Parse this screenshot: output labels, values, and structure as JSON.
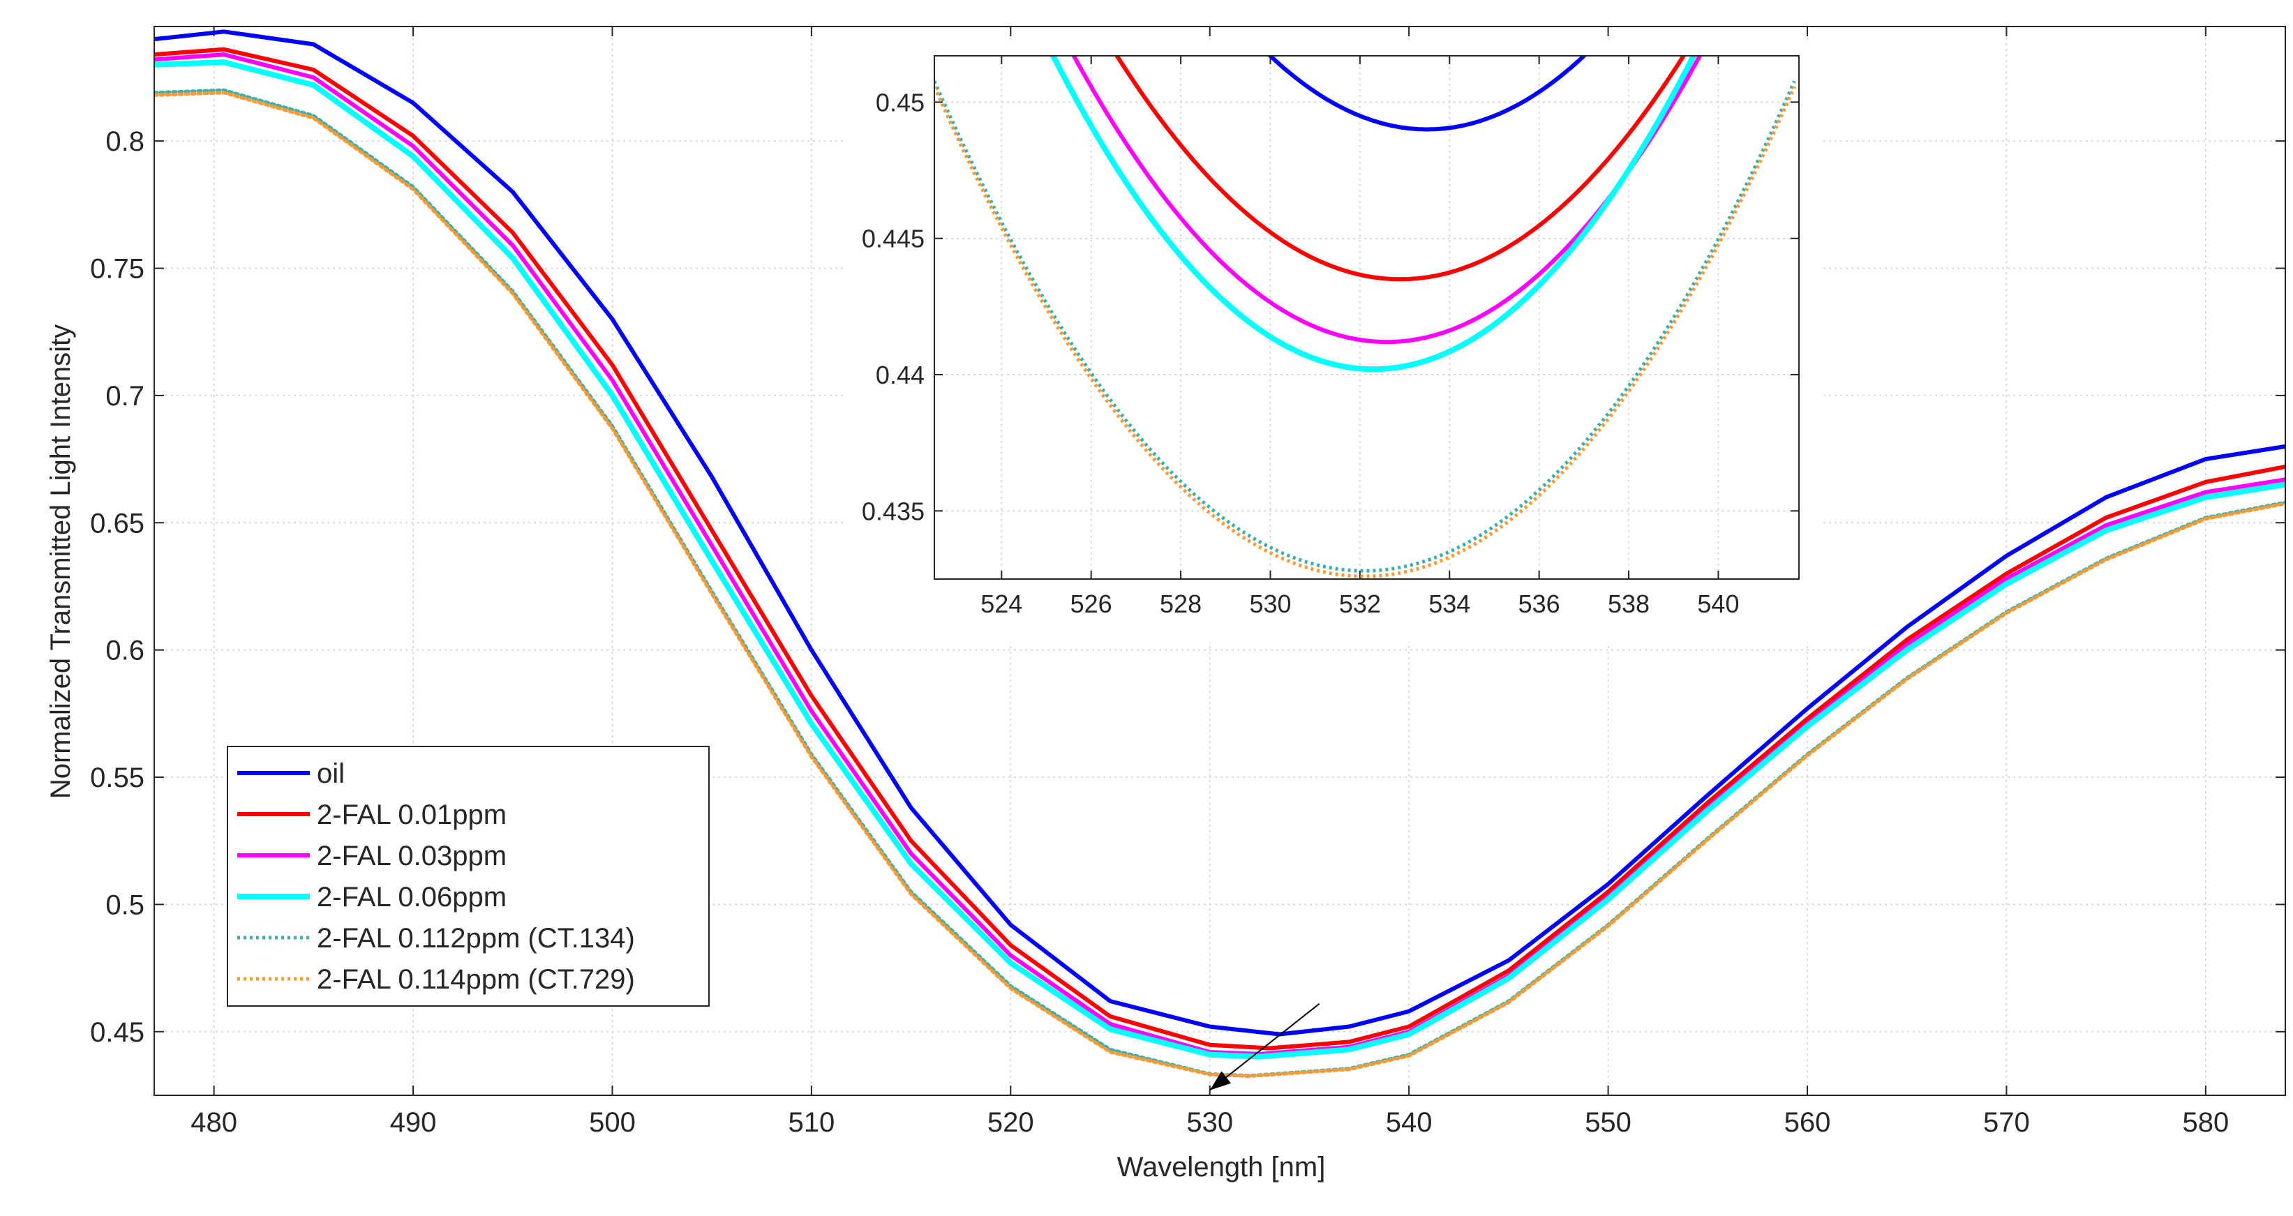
{
  "chart_data": {
    "type": "line",
    "xlabel": "Wavelength [nm]",
    "ylabel": "Normalized Transmitted Light Intensity",
    "xlim": [
      477,
      584
    ],
    "ylim": [
      0.425,
      0.845
    ],
    "xticks": [
      480,
      490,
      500,
      510,
      520,
      530,
      540,
      550,
      560,
      570,
      580
    ],
    "yticks": [
      0.45,
      0.5,
      0.55,
      0.6,
      0.65,
      0.7,
      0.75,
      0.8
    ],
    "ytick_labels": [
      "0.45",
      "0.5",
      "0.55",
      "0.6",
      "0.65",
      "0.7",
      "0.75",
      "0.8"
    ],
    "grid": true,
    "legend_position": "lower-left",
    "series": [
      {
        "name": "oil",
        "color": "#0000ff",
        "style": "solid",
        "width": 6,
        "x": [
          477,
          480.5,
          485,
          490,
          495,
          500,
          505,
          510,
          515,
          520,
          525,
          530,
          533.5,
          537,
          540,
          545,
          550,
          555,
          560,
          565,
          570,
          575,
          580,
          584
        ],
        "y": [
          0.84,
          0.843,
          0.838,
          0.815,
          0.78,
          0.73,
          0.668,
          0.6,
          0.538,
          0.492,
          0.462,
          0.452,
          0.449,
          0.452,
          0.458,
          0.478,
          0.508,
          0.543,
          0.577,
          0.609,
          0.637,
          0.66,
          0.675,
          0.68
        ]
      },
      {
        "name": "2-FAL 0.01ppm",
        "color": "#ff0000",
        "style": "solid",
        "width": 6,
        "x": [
          477,
          480.5,
          485,
          490,
          495,
          500,
          505,
          510,
          515,
          520,
          525,
          530,
          533,
          537,
          540,
          545,
          550,
          555,
          560,
          565,
          570,
          575,
          580,
          584
        ],
        "y": [
          0.834,
          0.836,
          0.828,
          0.802,
          0.764,
          0.712,
          0.647,
          0.582,
          0.525,
          0.484,
          0.456,
          0.4448,
          0.4435,
          0.446,
          0.452,
          0.474,
          0.505,
          0.54,
          0.573,
          0.604,
          0.63,
          0.652,
          0.666,
          0.672
        ]
      },
      {
        "name": "2-FAL 0.03ppm",
        "color": "#ff00ff",
        "style": "solid",
        "width": 6,
        "x": [
          477,
          480.5,
          485,
          490,
          495,
          500,
          505,
          510,
          515,
          520,
          525,
          530,
          532.5,
          537,
          540,
          545,
          550,
          555,
          560,
          565,
          570,
          575,
          580,
          584
        ],
        "y": [
          0.832,
          0.834,
          0.825,
          0.798,
          0.759,
          0.706,
          0.641,
          0.576,
          0.52,
          0.48,
          0.453,
          0.442,
          0.4412,
          0.444,
          0.45,
          0.472,
          0.503,
          0.538,
          0.571,
          0.602,
          0.628,
          0.649,
          0.662,
          0.667
        ]
      },
      {
        "name": "2-FAL 0.06ppm",
        "color": "#00ffff",
        "style": "solid",
        "width": 8,
        "x": [
          477,
          480.5,
          485,
          490,
          495,
          500,
          505,
          510,
          515,
          520,
          525,
          530,
          532.5,
          537,
          540,
          545,
          550,
          555,
          560,
          565,
          570,
          575,
          580,
          584
        ],
        "y": [
          0.83,
          0.831,
          0.822,
          0.794,
          0.754,
          0.7,
          0.635,
          0.571,
          0.516,
          0.477,
          0.451,
          0.441,
          0.4402,
          0.443,
          0.449,
          0.471,
          0.502,
          0.537,
          0.57,
          0.6,
          0.626,
          0.647,
          0.66,
          0.665
        ]
      },
      {
        "name": "2-FAL 0.112ppm (CT.134)",
        "color": "#3cb0a8",
        "style": "dotted",
        "width": 5,
        "x": [
          477,
          480.5,
          485,
          490,
          495,
          500,
          505,
          510,
          515,
          520,
          525,
          530,
          532,
          537,
          540,
          545,
          550,
          555,
          560,
          565,
          570,
          575,
          580,
          584
        ],
        "y": [
          0.819,
          0.82,
          0.81,
          0.782,
          0.741,
          0.688,
          0.623,
          0.559,
          0.505,
          0.468,
          0.443,
          0.4334,
          0.4327,
          0.4355,
          0.441,
          0.462,
          0.492,
          0.526,
          0.559,
          0.589,
          0.615,
          0.636,
          0.652,
          0.658
        ]
      },
      {
        "name": "2-FAL 0.114ppm (CT.729)",
        "color": "#ff9933",
        "style": "dotted",
        "width": 5,
        "x": [
          477,
          480.5,
          485,
          490,
          495,
          500,
          505,
          510,
          515,
          520,
          525,
          530,
          532,
          537,
          540,
          545,
          550,
          555,
          560,
          565,
          570,
          575,
          580,
          584
        ],
        "y": [
          0.818,
          0.819,
          0.809,
          0.781,
          0.74,
          0.687,
          0.622,
          0.558,
          0.504,
          0.467,
          0.442,
          0.4332,
          0.4325,
          0.4352,
          0.4405,
          0.4615,
          0.4915,
          0.5255,
          0.5585,
          0.5885,
          0.6145,
          0.6355,
          0.6515,
          0.6575
        ]
      }
    ],
    "annotation": {
      "type": "arrow",
      "from": [
        535.5,
        0.461
      ],
      "to": [
        530,
        0.427
      ]
    },
    "inset": {
      "xlim": [
        522.5,
        541.8
      ],
      "ylim": [
        0.4325,
        0.4517
      ],
      "xticks": [
        524,
        526,
        528,
        530,
        532,
        534,
        536,
        538,
        540
      ],
      "yticks": [
        0.435,
        0.44,
        0.445,
        0.45
      ],
      "ytick_labels": [
        "0.435",
        "0.44",
        "0.445",
        "0.45"
      ],
      "grid": true
    }
  }
}
